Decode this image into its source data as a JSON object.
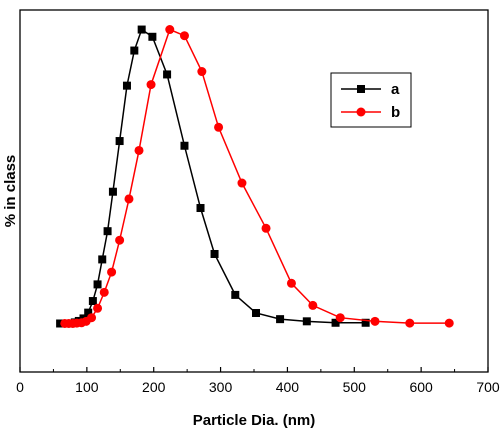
{
  "chart_data": {
    "type": "line",
    "xlabel": "Particle Dia. (nm)",
    "ylabel": "% in class",
    "xlim": [
      0,
      700
    ],
    "ylim": [
      0,
      100
    ],
    "x_ticks": [
      0,
      100,
      200,
      300,
      400,
      500,
      600,
      700
    ],
    "grid": false,
    "legend_position": "top-right",
    "series": [
      {
        "name": "a",
        "color": "#000000",
        "marker": "square",
        "x": [
          60,
          76,
          82,
          88,
          95,
          102,
          109,
          116,
          123,
          131,
          139,
          149,
          160,
          171,
          182,
          198,
          220,
          246,
          270,
          291,
          322,
          353,
          389,
          429,
          472,
          517
        ],
        "y": [
          13.4,
          13.4,
          13.7,
          14.1,
          14.8,
          16.4,
          19.6,
          24.2,
          31.1,
          38.9,
          49.8,
          63.8,
          79.1,
          88.8,
          94.6,
          92.6,
          82.2,
          62.5,
          45.3,
          32.6,
          21.3,
          16.3,
          14.6,
          14.0,
          13.6,
          13.6
        ]
      },
      {
        "name": "b",
        "color": "#ff0000",
        "marker": "circle",
        "x": [
          67,
          73,
          79,
          85,
          92,
          99,
          107,
          116,
          126,
          137,
          149,
          163,
          178,
          196,
          224,
          246,
          272,
          297,
          332,
          368,
          406,
          438,
          479,
          531,
          583,
          642
        ],
        "y": [
          13.4,
          13.4,
          13.4,
          13.5,
          13.6,
          14.0,
          15.0,
          17.6,
          22.0,
          27.6,
          36.4,
          47.8,
          61.2,
          79.4,
          94.6,
          92.9,
          83.0,
          67.6,
          52.2,
          39.7,
          24.5,
          18.4,
          15.0,
          14.0,
          13.5,
          13.5
        ]
      }
    ]
  }
}
